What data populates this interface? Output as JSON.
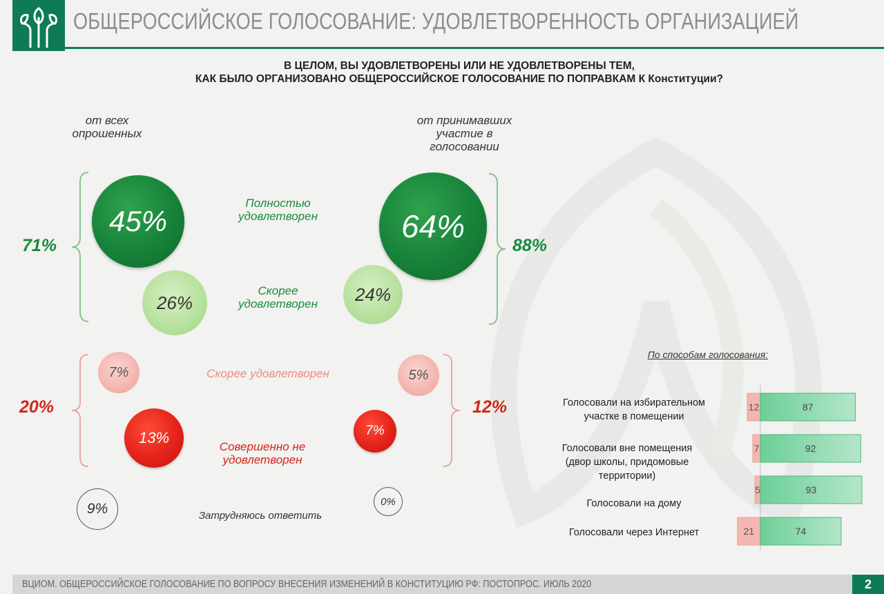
{
  "header": {
    "title": "ОБЩЕРОССИЙСКОЕ ГОЛОСОВАНИЕ: УДОВЛЕТВОРЕННОСТЬ ОРГАНИЗАЦИЕЙ",
    "brand_color": "#0e7b55"
  },
  "question": {
    "line1": "В ЦЕЛОМ, ВЫ УДОВЛЕТВОРЕНЫ ИЛИ НЕ УДОВЛЕТВОРЕНЫ ТЕМ,",
    "line2": "КАК БЫЛО ОРГАНИЗОВАНО ОБЩЕРОССИЙСКОЕ ГОЛОСОВАНИЕ ПО ПОПРАВКАМ К Конституции?"
  },
  "columns": {
    "left": {
      "line1": "от всех",
      "line2": "опрошенных"
    },
    "right": {
      "line1": "от принимавших",
      "line2": "участие в",
      "line3": "голосовании"
    }
  },
  "categories": {
    "fully_satisfied": {
      "line1": "Полностью",
      "line2": "удовлетворен"
    },
    "rather_satisfied": {
      "line1": "Скорее",
      "line2": "удовлетворен"
    },
    "rather_dissatisfied": {
      "line1": "Скорее удовлетворен"
    },
    "fully_dissatisfied": {
      "line1": "Совершенно не",
      "line2": "удовлетворен"
    },
    "hard_to_say": {
      "line1": "Затрудняюсь ответить"
    }
  },
  "values": {
    "all": {
      "fully_satisfied": "45%",
      "rather_satisfied": "26%",
      "rather_dissatisfied": "7%",
      "fully_dissatisfied": "13%",
      "hard_to_say": "9%"
    },
    "voters": {
      "fully_satisfied": "64%",
      "rather_satisfied": "24%",
      "rather_dissatisfied": "5%",
      "fully_dissatisfied": "7%",
      "hard_to_say": "0%"
    }
  },
  "sums": {
    "all_satisfied": "71%",
    "voters_satisfied": "88%",
    "all_dissatisfied": "20%",
    "voters_dissatisfied": "12%"
  },
  "methods": {
    "title": "По способам голосования:",
    "rows": [
      {
        "line1": "Голосовали на избирательном",
        "line2": "участке в помещении",
        "line3": ""
      },
      {
        "line1": "Голосовали вне помещения",
        "line2": "(двор школы, придомовые",
        "line3": "территории)"
      },
      {
        "line1": "Голосовали на дому",
        "line2": "",
        "line3": ""
      },
      {
        "line1": "Голосовали через Интернет",
        "line2": "",
        "line3": ""
      }
    ]
  },
  "chart_data": {
    "type": "bar",
    "orientation": "horizontal-diverging",
    "title": "По способам голосования:",
    "categories": [
      "Голосовали на избирательном участке в помещении",
      "Голосовали вне помещения (двор школы, придомовые территории)",
      "Голосовали на дому",
      "Голосовали через Интернет"
    ],
    "series": [
      {
        "values": [
          12,
          7,
          5,
          21
        ],
        "color": "#f4b6b0"
      },
      {
        "values": [
          87,
          92,
          93,
          74
        ],
        "color": "#6ccf97"
      }
    ]
  },
  "footer": {
    "text": "ВЦИОМ. ОБЩЕРОССИЙСКОЕ ГОЛОСОВАНИЕ ПО ВОПРОСУ ВНЕСЕНИЯ ИЗМЕНЕНИЙ В КОНСТИТУЦИЮ РФ: ПОСТОПРОС. ИЮЛЬ 2020",
    "page": "2"
  },
  "colors": {
    "green_dark": "#17823a",
    "green_light": "#b6e09c",
    "red_light": "#f3b2ac",
    "red_dark": "#e4231b",
    "sum_green": "#1a8a3e",
    "sum_red": "#d42517"
  }
}
